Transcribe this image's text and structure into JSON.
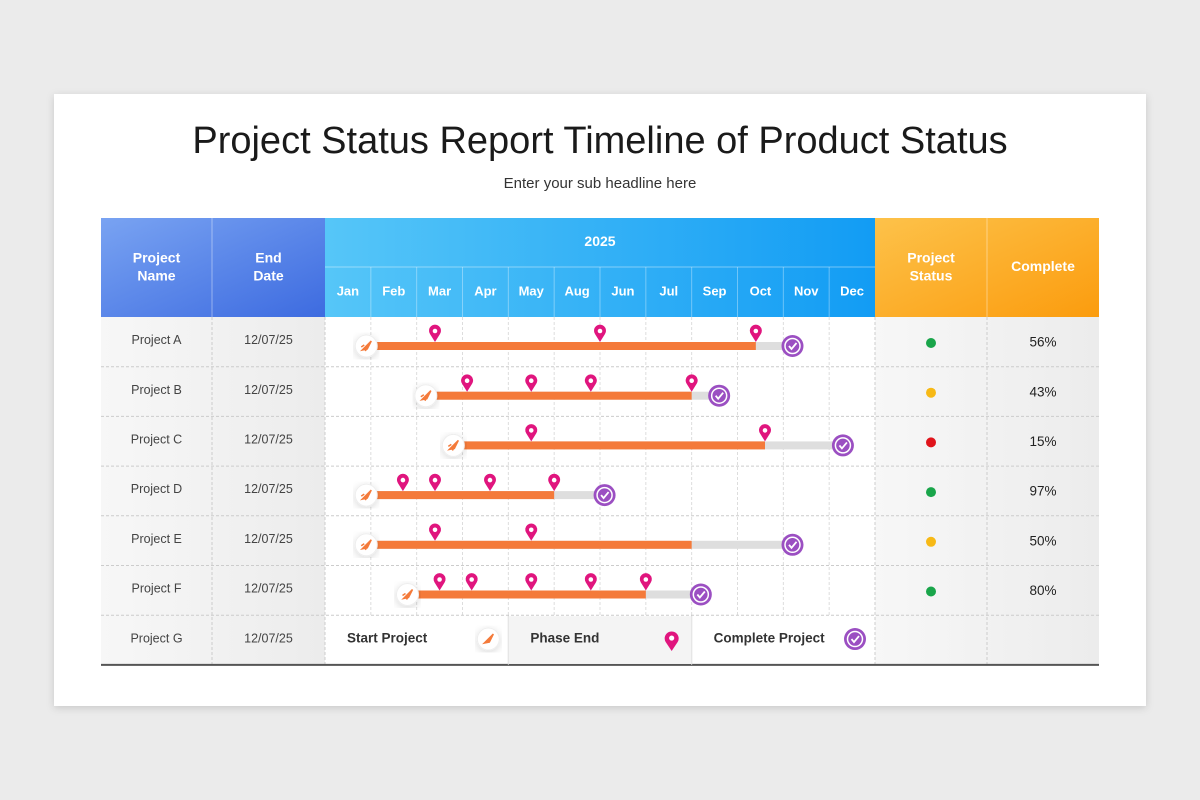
{
  "title": "Project Status Report Timeline of Product Status",
  "subtitle": "Enter your sub headline here",
  "table": {
    "headers": {
      "name": "Project Name",
      "date": "End Date",
      "year": "2025",
      "status": "Project Status",
      "complete": "Complete"
    },
    "months": [
      "Jan",
      "Feb",
      "Mar",
      "Apr",
      "May",
      "Aug",
      "Jun",
      "Jul",
      "Sep",
      "Oct",
      "Nov",
      "Dec"
    ],
    "rows": [
      {
        "name": "Project A",
        "date": "12/07/25",
        "status_color": "#19a54a",
        "complete": "56%",
        "start": 0.9,
        "progress": 9.4,
        "end": 10.2,
        "phases": [
          2.4,
          6.0,
          9.4
        ]
      },
      {
        "name": "Project B",
        "date": "12/07/25",
        "status_color": "#f7b916",
        "complete": "43%",
        "start": 2.2,
        "progress": 8.0,
        "end": 8.6,
        "phases": [
          3.1,
          4.5,
          5.8,
          8.0
        ]
      },
      {
        "name": "Project C",
        "date": "12/07/25",
        "status_color": "#e0141b",
        "complete": "15%",
        "start": 2.8,
        "progress": 9.6,
        "end": 11.3,
        "phases": [
          4.5,
          9.6
        ]
      },
      {
        "name": "Project D",
        "date": "12/07/25",
        "status_color": "#19a54a",
        "complete": "97%",
        "start": 0.9,
        "progress": 5.0,
        "end": 6.1,
        "phases": [
          1.7,
          2.4,
          3.6,
          5.0
        ]
      },
      {
        "name": "Project E",
        "date": "12/07/25",
        "status_color": "#f7b916",
        "complete": "50%",
        "start": 0.9,
        "progress": 8.0,
        "end": 10.2,
        "phases": [
          2.4,
          4.5
        ]
      },
      {
        "name": "Project F",
        "date": "12/07/25",
        "status_color": "#19a54a",
        "complete": "80%",
        "start": 1.8,
        "progress": 7.0,
        "end": 8.2,
        "phases": [
          2.5,
          3.2,
          4.5,
          5.8,
          7.0
        ]
      }
    ],
    "last_row": {
      "name": "Project G",
      "date": "12/07/25"
    },
    "legend": {
      "start": "Start Project",
      "phase": "Phase End",
      "complete": "Complete Project"
    }
  }
}
